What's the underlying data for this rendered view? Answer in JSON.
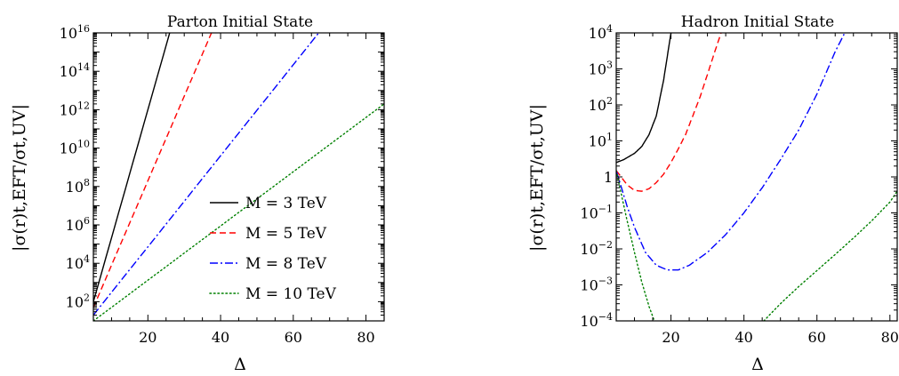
{
  "chart_data": [
    {
      "type": "line",
      "title": "Parton Initial State",
      "xlabel": "Δ",
      "ylabel": "|σ(r)t,EFT/σt,UV|",
      "yscale": "log",
      "xlim": [
        5,
        85
      ],
      "ylim": [
        10,
        1e+16
      ],
      "xticks": [
        20,
        40,
        60,
        80
      ],
      "xticklabels": [
        "20",
        "40",
        "60",
        "80"
      ],
      "yticks": [
        100.0,
        10000.0,
        1000000.0,
        100000000.0,
        10000000000.0,
        1000000000000.0,
        100000000000000.0,
        1e+16
      ],
      "ytick_base": "10",
      "ytick_exps": [
        "2",
        "4",
        "6",
        "8",
        "10",
        "12",
        "14",
        "16"
      ],
      "grid": false,
      "legend": "lower-right",
      "series": [
        {
          "name": "M = 3 TeV",
          "color": "#000000",
          "dash": "solid",
          "x": [
            5,
            26
          ],
          "y": [
            100,
            1e+16
          ]
        },
        {
          "name": "M = 5 TeV",
          "color": "#ff0000",
          "dash": "dashed",
          "x": [
            5,
            37.5
          ],
          "y": [
            50,
            1e+16
          ]
        },
        {
          "name": "M = 8 TeV",
          "color": "#0000ff",
          "dash": "dashdot",
          "x": [
            5,
            67
          ],
          "y": [
            20,
            1e+16
          ]
        },
        {
          "name": "M = 10 TeV",
          "color": "#008000",
          "dash": "dotted",
          "x": [
            5,
            85
          ],
          "y": [
            10,
            2000000000000.0
          ]
        }
      ]
    },
    {
      "type": "line",
      "title": "Hadron Initial State",
      "xlabel": "Δ",
      "ylabel": "|σ(r)t,EFT/σt,UV|",
      "yscale": "log",
      "xlim": [
        5,
        82
      ],
      "ylim": [
        0.0001,
        10000.0
      ],
      "xticks": [
        20,
        40,
        60,
        80
      ],
      "xticklabels": [
        "20",
        "40",
        "60",
        "80"
      ],
      "yticks": [
        0.0001,
        0.001,
        0.01,
        0.1,
        1,
        10,
        100,
        1000,
        10000
      ],
      "ytick_base": "10",
      "ytick_exps": [
        "−4",
        "−3",
        "−2",
        "−1",
        "",
        "1",
        "2",
        "3",
        "4"
      ],
      "ytick_plain": [
        "",
        "",
        "",
        "",
        "1",
        "",
        "",
        "",
        ""
      ],
      "grid": false,
      "series": [
        {
          "name": "M = 3 TeV",
          "color": "#000000",
          "dash": "solid",
          "x": [
            5,
            7,
            10,
            12,
            14,
            16,
            18,
            20
          ],
          "y": [
            2.5,
            3,
            4.5,
            7,
            15,
            50,
            500,
            10000
          ]
        },
        {
          "name": "M = 5 TeV",
          "color": "#ff0000",
          "dash": "dashed",
          "x": [
            5,
            8,
            10,
            12,
            14,
            16,
            18,
            20,
            22,
            24,
            26,
            28,
            30,
            32,
            34
          ],
          "y": [
            1.5,
            0.6,
            0.42,
            0.4,
            0.47,
            0.7,
            1.2,
            2.5,
            6,
            15,
            50,
            170,
            700,
            3000,
            12000
          ]
        },
        {
          "name": "M = 8 TeV",
          "color": "#0000ff",
          "dash": "dashdot",
          "x": [
            5,
            8,
            10,
            13,
            16,
            19,
            22,
            25,
            30,
            35,
            40,
            45,
            50,
            55,
            60,
            65,
            68
          ],
          "y": [
            1.5,
            0.15,
            0.04,
            0.008,
            0.0035,
            0.0026,
            0.0026,
            0.0035,
            0.008,
            0.025,
            0.1,
            0.5,
            3,
            20,
            200,
            3000,
            12000
          ]
        },
        {
          "name": "M = 10 TeV",
          "color": "#008000",
          "dash": "dotted",
          "x": [
            5,
            6,
            8,
            10,
            12,
            14,
            16,
            18
          ],
          "y": [
            1.5,
            0.5,
            0.06,
            0.008,
            0.0012,
            0.00025,
            7e-05,
            2e-05
          ],
          "x2": [
            40,
            45,
            50,
            55,
            60,
            65,
            70,
            75,
            80,
            82
          ],
          "y2": [
            2e-05,
            9e-05,
            0.0003,
            0.0009,
            0.0025,
            0.007,
            0.02,
            0.06,
            0.2,
            0.4
          ]
        }
      ]
    }
  ]
}
